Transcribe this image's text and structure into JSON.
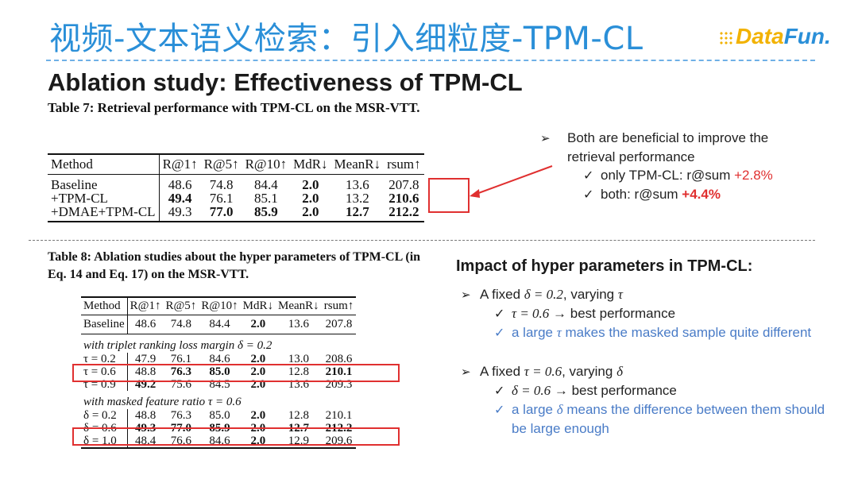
{
  "header": {
    "title": "视频-文本语义检索：引入细粒度-TPM-CL",
    "logo_text": "DataFun."
  },
  "subtitle": "Ablation study: Effectiveness of TPM-CL",
  "table7": {
    "caption": "Table 7: Retrieval performance with TPM-CL on the MSR-VTT.",
    "columns": [
      "Method",
      "R@1↑",
      "R@5↑",
      "R@10↑",
      "MdR↓",
      "MeanR↓",
      "rsum↑"
    ],
    "rows": [
      [
        "Baseline",
        "48.6",
        "74.8",
        "84.4",
        "2.0",
        "13.6",
        "207.8"
      ],
      [
        "+TPM-CL",
        "49.4",
        "76.1",
        "85.1",
        "2.0",
        "13.2",
        "210.6"
      ],
      [
        "+DMAE+TPM-CL",
        "49.3",
        "77.0",
        "85.9",
        "2.0",
        "12.7",
        "212.2"
      ]
    ]
  },
  "table8": {
    "caption": "Table 8: Ablation studies about the hyper parameters of TPM-CL (in Eq. 14 and Eq. 17) on the MSR-VTT.",
    "columns": [
      "Method",
      "R@1↑",
      "R@5↑",
      "R@10↑",
      "MdR↓",
      "MeanR↓",
      "rsum↑"
    ],
    "baseline": [
      "Baseline",
      "48.6",
      "74.8",
      "84.4",
      "2.0",
      "13.6",
      "207.8"
    ],
    "section1": "with triplet ranking loss margin δ = 0.2",
    "rows1": [
      [
        "τ = 0.2",
        "47.9",
        "76.1",
        "84.6",
        "2.0",
        "13.0",
        "208.6"
      ],
      [
        "τ = 0.6",
        "48.8",
        "76.3",
        "85.0",
        "2.0",
        "12.8",
        "210.1"
      ],
      [
        "τ = 0.9",
        "49.2",
        "75.6",
        "84.5",
        "2.0",
        "13.6",
        "209.3"
      ]
    ],
    "section2": "with masked feature ratio τ = 0.6",
    "rows2": [
      [
        "δ = 0.2",
        "48.8",
        "76.3",
        "85.0",
        "2.0",
        "12.8",
        "210.1"
      ],
      [
        "δ = 0.6",
        "49.3",
        "77.0",
        "85.9",
        "2.0",
        "12.7",
        "212.2"
      ],
      [
        "δ = 1.0",
        "48.4",
        "76.6",
        "84.6",
        "2.0",
        "12.9",
        "209.6"
      ]
    ]
  },
  "notes_top": {
    "bullet": "Both are beneficial to improve the retrieval performance",
    "check1_text": "only TPM-CL: r@sum ",
    "check1_value": "+2.8%",
    "check2_text": "both: r@sum ",
    "check2_value": "+4.4%"
  },
  "notes_bottom": {
    "heading": "Impact of hyper parameters in TPM-CL:",
    "b1_prefix": "A fixed ",
    "b1_math": "δ = 0.2",
    "b1_mid": ", varying ",
    "b1_var": "τ",
    "c1_math": "τ = 0.6",
    "c1_text": " → best performance",
    "c2_pre": "a large ",
    "c2_var": "τ",
    "c2_post": " makes the masked sample quite different",
    "b2_prefix": "A fixed ",
    "b2_math": "τ = 0.6",
    "b2_mid": ", varying ",
    "b2_var": "δ",
    "c3_math": "δ = 0.6",
    "c3_text": " →  best performance",
    "c4_pre": "a large ",
    "c4_var": "δ",
    "c4_post": " means the difference between them should be large enough"
  },
  "colors": {
    "title": "#2a8fd8",
    "highlight": "#e03030",
    "note_blue": "#4a7cc7"
  }
}
